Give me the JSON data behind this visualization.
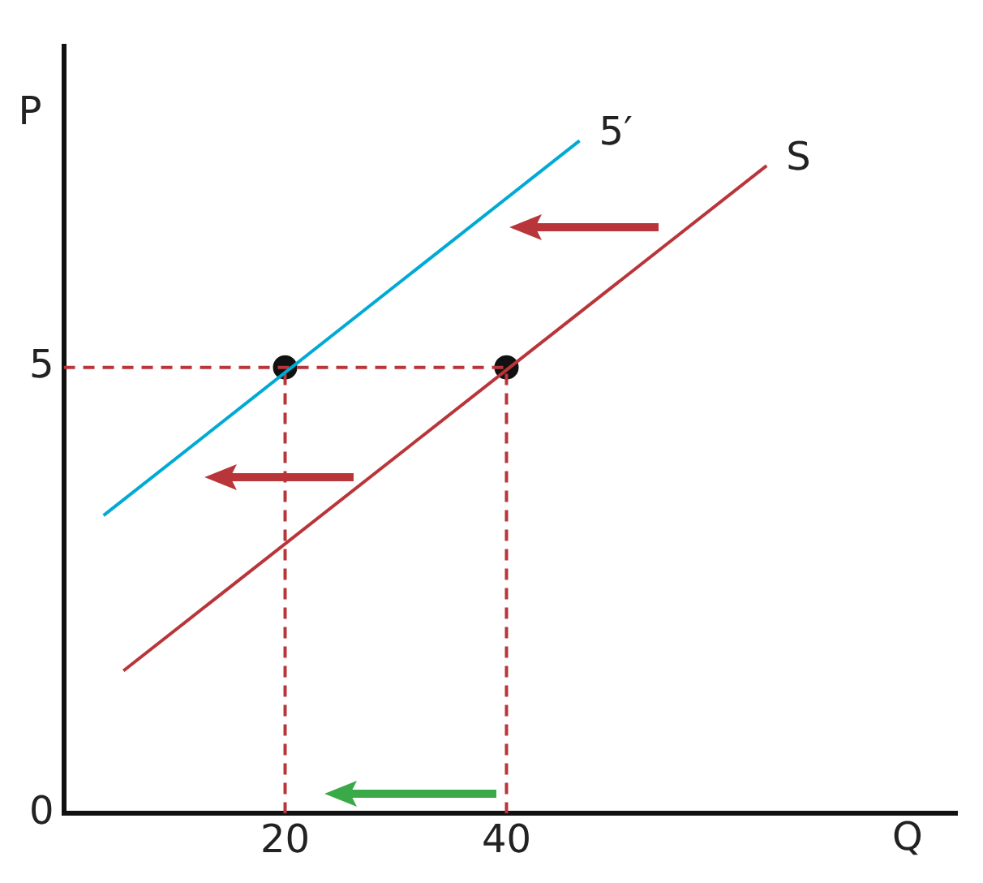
{
  "chart_data": {
    "type": "line",
    "xlabel": "Q",
    "ylabel": "P",
    "xlim": [
      0,
      80.7
    ],
    "ylim": [
      0,
      8.6
    ],
    "xticks": [
      20,
      40
    ],
    "yticks": [
      0,
      5
    ],
    "grid": false,
    "legend": false,
    "series": [
      {
        "name": "S",
        "color": "#b8363a",
        "x": [
          5.4,
          63.5
        ],
        "values": [
          1.6,
          7.26
        ],
        "marker": "none"
      },
      {
        "name": "5′",
        "color": "#00aad4",
        "x": [
          3.6,
          46.6
        ],
        "values": [
          3.34,
          7.54
        ],
        "marker": "none"
      },
      {
        "color": "#b8363a",
        "x": [
          0,
          40
        ],
        "values": [
          5,
          5
        ],
        "line_style": "dashed",
        "marker": "none"
      },
      {
        "color": "#b8363a",
        "x": [
          20,
          20
        ],
        "values": [
          0,
          5
        ],
        "line_style": "dashed",
        "marker": "none"
      },
      {
        "color": "#b8363a",
        "x": [
          40,
          40
        ],
        "values": [
          0,
          5
        ],
        "line_style": "dashed",
        "marker": "none"
      },
      {
        "type": "scatter",
        "color": "#111111",
        "x": [
          20,
          40
        ],
        "values": [
          5,
          5
        ],
        "marker": "circle"
      }
    ]
  }
}
